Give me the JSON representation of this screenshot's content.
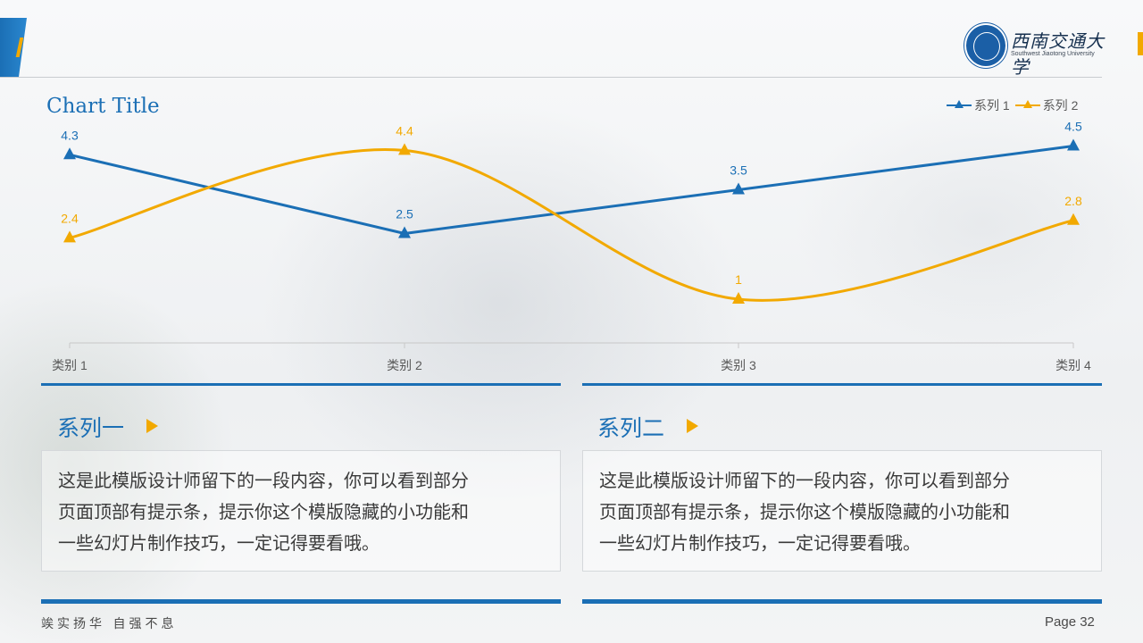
{
  "header": {
    "university_name": "西南交通大学",
    "university_name_en": "Southwest Jiaotong University"
  },
  "chart_data": {
    "type": "line",
    "title": "Chart Title",
    "categories": [
      "类别 1",
      "类别 2",
      "类别 3",
      "类别 4"
    ],
    "series": [
      {
        "name": "系列 1",
        "values": [
          4.3,
          2.5,
          3.5,
          4.5
        ],
        "color": "#1b6fb5",
        "smooth": false
      },
      {
        "name": "系列 2",
        "values": [
          2.4,
          4.4,
          1,
          2.8
        ],
        "color": "#f2a900",
        "smooth": true
      }
    ],
    "ylim": [
      0,
      5
    ],
    "grid": false,
    "legend_position": "top-right",
    "marker": "triangle",
    "data_labels": true
  },
  "panels": [
    {
      "title": "系列一",
      "lines": [
        "这是此模版设计师留下的一段内容，你可以看到部分",
        "页面顶部有提示条，提示你这个模版隐藏的小功能和",
        "一些幻灯片制作技巧，一定记得要看哦。"
      ]
    },
    {
      "title": "系列二",
      "lines": [
        "这是此模版设计师留下的一段内容，你可以看到部分",
        "页面顶部有提示条，提示你这个模版隐藏的小功能和",
        "一些幻灯片制作技巧，一定记得要看哦。"
      ]
    }
  ],
  "footer": {
    "motto": "竢实扬华  自强不息",
    "page": "Page 32"
  },
  "colors": {
    "accent_blue": "#1b6fb5",
    "accent_orange": "#f2a900"
  }
}
